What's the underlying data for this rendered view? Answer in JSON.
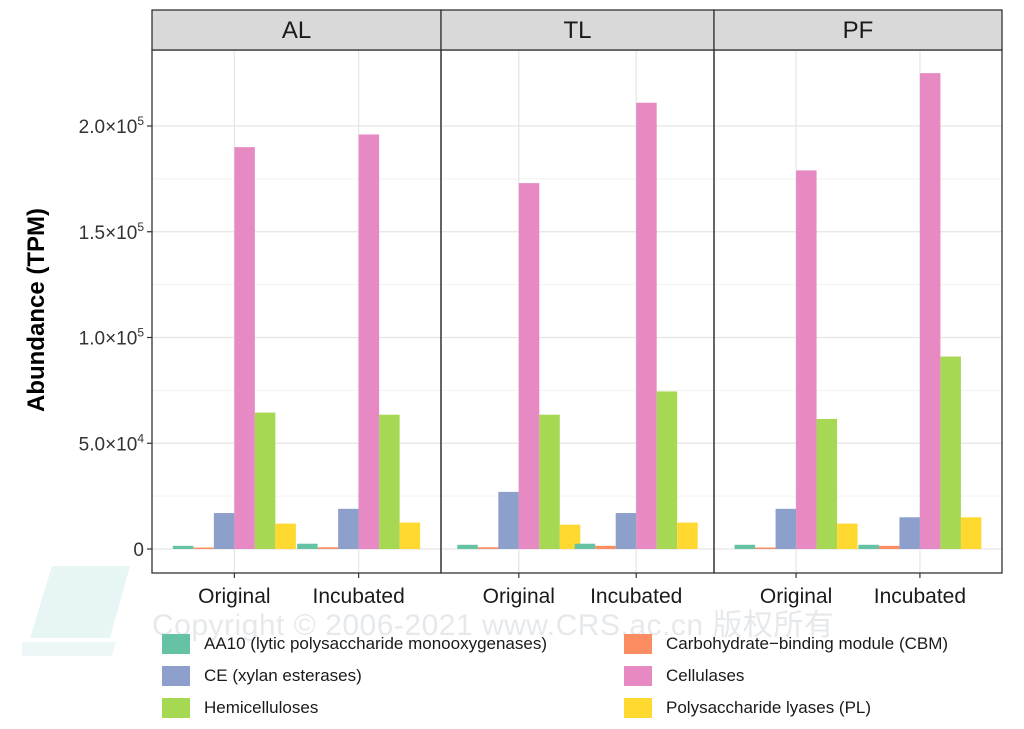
{
  "watermark_text": "Copyright © 2006-2021 www.CRS.ac.cn 版权所有",
  "chart_data": {
    "type": "bar",
    "facets": [
      "AL",
      "TL",
      "PF"
    ],
    "categories": [
      "Original",
      "Incubated"
    ],
    "ylabel": "Abundance (TPM)",
    "xlabel": "",
    "ylim": [
      -7000,
      240000
    ],
    "yticks": [
      0,
      50000,
      100000,
      150000,
      200000
    ],
    "ytick_labels": [
      {
        "mant": "0",
        "exp": ""
      },
      {
        "mant": "5.0×10",
        "exp": "4"
      },
      {
        "mant": "1.0×10",
        "exp": "5"
      },
      {
        "mant": "1.5×10",
        "exp": "5"
      },
      {
        "mant": "2.0×10",
        "exp": "5"
      }
    ],
    "legend_position": "bottom",
    "series": [
      {
        "name": "AA10 (lytic polysaccharide monooxygenases)",
        "color": "#66c2a5",
        "values": {
          "AL": [
            1500,
            2500
          ],
          "TL": [
            2000,
            2500
          ],
          "PF": [
            2000,
            2000
          ]
        }
      },
      {
        "name": "Carbohydrate−binding module (CBM)",
        "color": "#fc8d62",
        "values": {
          "AL": [
            700,
            800
          ],
          "TL": [
            800,
            1500
          ],
          "PF": [
            700,
            1500
          ]
        }
      },
      {
        "name": "CE (xylan esterases)",
        "color": "#8da0cb",
        "values": {
          "AL": [
            17000,
            19000
          ],
          "TL": [
            27000,
            17000
          ],
          "PF": [
            19000,
            15000
          ]
        }
      },
      {
        "name": "Cellulases",
        "color": "#e78ac3",
        "values": {
          "AL": [
            190000,
            196000
          ],
          "TL": [
            173000,
            211000
          ],
          "PF": [
            179000,
            225000
          ]
        }
      },
      {
        "name": "Hemicelluloses",
        "color": "#a6d854",
        "values": {
          "AL": [
            64500,
            63500
          ],
          "TL": [
            63500,
            74500
          ],
          "PF": [
            61500,
            91000
          ]
        }
      },
      {
        "name": "Polysaccharide lyases (PL)",
        "color": "#ffd92f",
        "values": {
          "AL": [
            12000,
            12500
          ],
          "TL": [
            11500,
            12500
          ],
          "PF": [
            12000,
            15000
          ]
        }
      }
    ]
  }
}
